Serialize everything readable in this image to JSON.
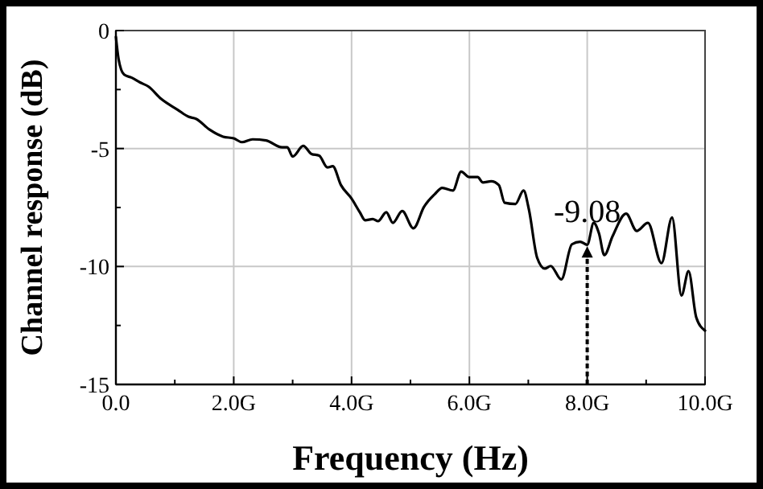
{
  "chart_data": {
    "type": "line",
    "xlabel": "Frequency (Hz)",
    "ylabel": "Channel response (dB)",
    "xlim": [
      0,
      10
    ],
    "ylim": [
      -15,
      0
    ],
    "xticks": [
      {
        "value": 0,
        "label": "0.0"
      },
      {
        "value": 1,
        "label": null
      },
      {
        "value": 2,
        "label": "2.0G"
      },
      {
        "value": 3,
        "label": null
      },
      {
        "value": 4,
        "label": "4.0G"
      },
      {
        "value": 5,
        "label": null
      },
      {
        "value": 6,
        "label": "6.0G"
      },
      {
        "value": 7,
        "label": null
      },
      {
        "value": 8,
        "label": "8.0G"
      },
      {
        "value": 9,
        "label": null
      },
      {
        "value": 10,
        "label": "10.0G"
      }
    ],
    "yticks": [
      -15,
      {
        "value": -12.5,
        "label": null
      },
      -10,
      {
        "value": -7.5,
        "label": null
      },
      -5,
      {
        "value": -2.5,
        "label": null
      },
      0
    ],
    "grid": true,
    "marker": "none",
    "line_style": "solid",
    "annotations": [
      {
        "text": "-9.08",
        "x": 8,
        "y": -9.08
      }
    ],
    "series": [
      {
        "color": "#000000",
        "x": [
          0,
          0.045,
          0.14,
          0.27,
          0.41,
          0.55,
          0.77,
          1.05,
          1.23,
          1.36,
          1.59,
          1.82,
          2.0,
          2.14,
          2.32,
          2.55,
          2.82,
          2.91,
          3.0,
          3.18,
          3.32,
          3.45,
          3.59,
          3.68,
          3.82,
          4.0,
          4.14,
          4.23,
          4.36,
          4.45,
          4.59,
          4.7,
          4.86,
          5.05,
          5.23,
          5.41,
          5.54,
          5.72,
          5.86,
          6.0,
          6.14,
          6.23,
          6.37,
          6.5,
          6.6,
          6.78,
          6.92,
          7.01,
          7.15,
          7.28,
          7.38,
          7.56,
          7.74,
          7.88,
          8.0,
          8.11,
          8.2,
          8.29,
          8.43,
          8.66,
          8.84,
          9.03,
          9.26,
          9.44,
          9.6,
          9.72,
          9.85,
          10.0
        ],
        "values": [
          -0.27,
          -1.2,
          -1.87,
          -2.0,
          -2.2,
          -2.37,
          -2.9,
          -3.36,
          -3.65,
          -3.74,
          -4.2,
          -4.5,
          -4.57,
          -4.73,
          -4.61,
          -4.66,
          -4.95,
          -4.95,
          -5.34,
          -4.89,
          -5.23,
          -5.3,
          -5.8,
          -5.75,
          -6.55,
          -7.12,
          -7.7,
          -8.04,
          -7.99,
          -8.08,
          -7.7,
          -8.15,
          -7.65,
          -8.38,
          -7.47,
          -6.94,
          -6.67,
          -6.78,
          -5.98,
          -6.21,
          -6.21,
          -6.44,
          -6.39,
          -6.55,
          -7.3,
          -7.35,
          -6.78,
          -7.58,
          -9.63,
          -10.09,
          -9.98,
          -10.55,
          -9.06,
          -8.95,
          -9.08,
          -8.15,
          -8.6,
          -9.52,
          -8.72,
          -7.76,
          -8.49,
          -8.15,
          -9.86,
          -7.92,
          -11.23,
          -10.2,
          -12.15,
          -12.72
        ]
      }
    ]
  }
}
